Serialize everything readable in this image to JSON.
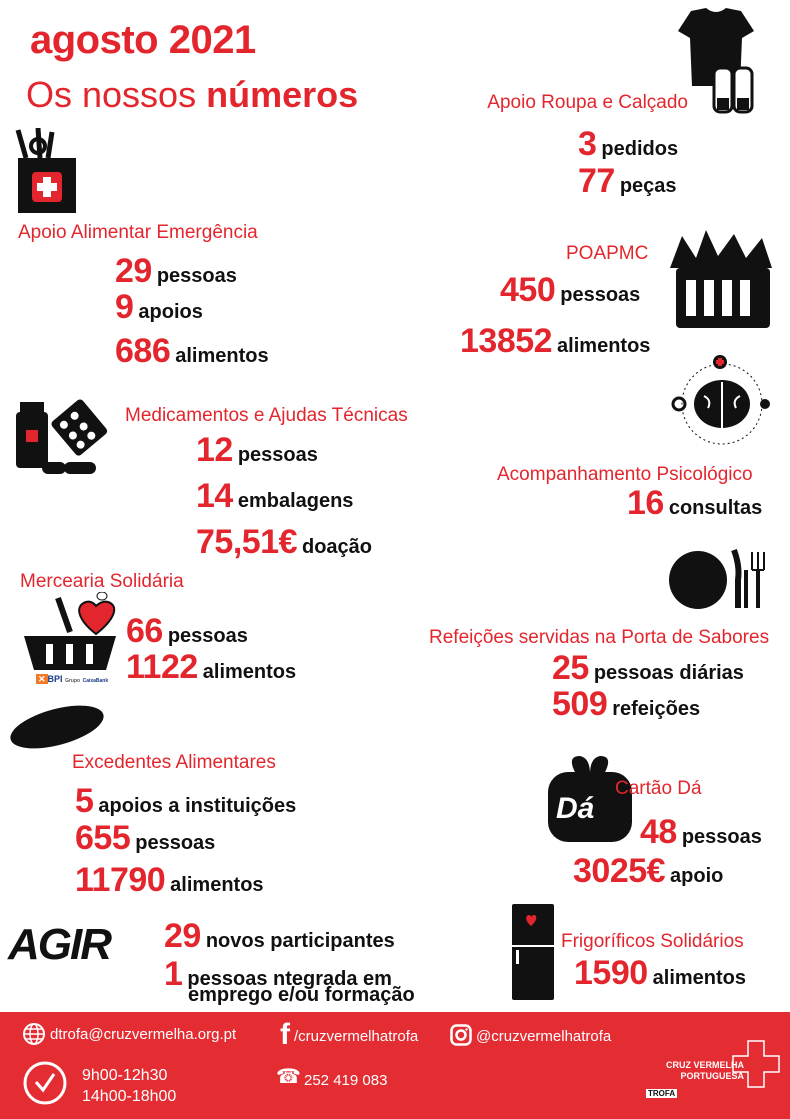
{
  "header": {
    "title": "agosto 2021",
    "subtitle_prefix": "Os nossos",
    "subtitle_bold": "números"
  },
  "colors": {
    "accent": "#e3262d",
    "footer": "#e32d33"
  },
  "sections": {
    "roupa": {
      "title": "Apoio Roupa e Calçado",
      "icon": "clothes-shoes-icon",
      "stats": [
        {
          "value": "3",
          "label": "pedidos"
        },
        {
          "value": "77",
          "label": "peças"
        }
      ]
    },
    "alimentar": {
      "title": "Apoio Alimentar Emergência",
      "icon": "food-bag-icon",
      "stats": [
        {
          "value": "29",
          "label": "pessoas"
        },
        {
          "value": "9",
          "label": "apoios"
        },
        {
          "value": "686",
          "label": "alimentos"
        }
      ]
    },
    "poapmc": {
      "title": "POAPMC",
      "icon": "grocery-basket-icon",
      "stats": [
        {
          "value": "450",
          "label": "pessoas"
        },
        {
          "value": "13852",
          "label": "alimentos"
        }
      ]
    },
    "medicamentos": {
      "title": "Medicamentos e Ajudas Técnicas",
      "icon": "medicine-icon",
      "stats": [
        {
          "value": "12",
          "label": "pessoas"
        },
        {
          "value": "14",
          "label": "embalagens"
        },
        {
          "value": "75,51€",
          "label": "doação"
        }
      ]
    },
    "psicologico": {
      "title": "Acompanhamento Psicológico",
      "icon": "brain-icon",
      "stats": [
        {
          "value": "16",
          "label": "consultas"
        }
      ]
    },
    "mercearia": {
      "title": "Mercearia Solidária",
      "icon": "heart-basket-icon",
      "sponsor": "BPI Grupo CaixaBank",
      "stats": [
        {
          "value": "66",
          "label": "pessoas"
        },
        {
          "value": "1122",
          "label": "alimentos"
        }
      ]
    },
    "refeicoes": {
      "title": "Refeições servidas na Porta de Sabores",
      "icon": "plate-cutlery-icon",
      "stats": [
        {
          "value": "25",
          "label": "pessoas diárias"
        },
        {
          "value": "509",
          "label": "refeições"
        }
      ]
    },
    "excedentes": {
      "title": "Excedentes Alimentares",
      "icon": "bread-icon",
      "stats": [
        {
          "value": "5",
          "label": "apoios a instituições"
        },
        {
          "value": "655",
          "label": "pessoas"
        },
        {
          "value": "11790",
          "label": "alimentos"
        }
      ]
    },
    "cartao": {
      "title": "Cartão Dá",
      "icon": "gift-card-icon",
      "logo_text": "Dá",
      "stats": [
        {
          "value": "48",
          "label": "pessoas"
        },
        {
          "value": "3025€",
          "label": "apoio"
        }
      ]
    },
    "agir": {
      "logo_text": "AGIR",
      "stats": [
        {
          "value": "29",
          "label": "novos participantes"
        },
        {
          "value": "1",
          "label": "pessoas ntegrada em",
          "label2": "emprego e/ou formação"
        }
      ]
    },
    "frigorificos": {
      "title": "Frigoríficos Solidários",
      "icon": "fridge-icon",
      "stats": [
        {
          "value": "1590",
          "label": "alimentos"
        }
      ]
    }
  },
  "footer": {
    "email": "dtrofa@cruzvermelha.org.pt",
    "facebook": "/cruzvermelhatrofa",
    "instagram": "@cruzvermelhatrofa",
    "hours1": "9h00-12h30",
    "hours2": "14h00-18h00",
    "phone": "252 419 083",
    "org_line1": "CRUZ VERMELHA",
    "org_line2": "PORTUGUESA",
    "org_branch": "TROFA"
  }
}
